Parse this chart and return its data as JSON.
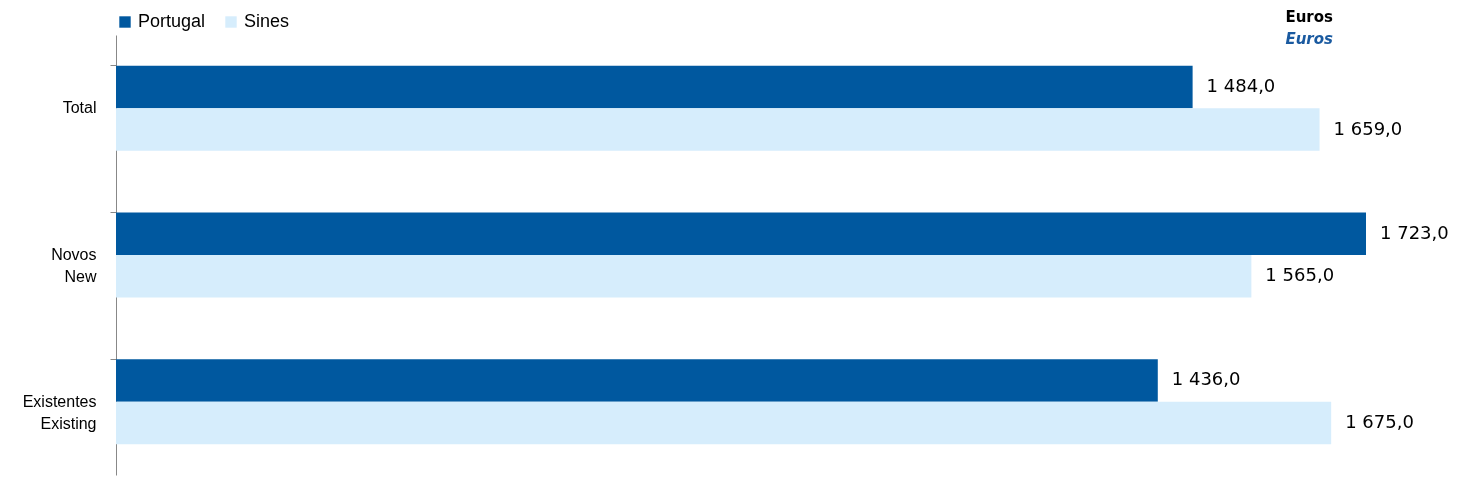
{
  "chart_data": {
    "type": "bar",
    "orientation": "horizontal",
    "categories": [
      "Total",
      "Novos\nNew",
      "Existentes\nExisting"
    ],
    "series": [
      {
        "name": "Portugal",
        "color": "#00589f",
        "values": [
          1484.0,
          1723.0,
          1436.0
        ],
        "value_labels": [
          "1 484,0",
          "1 723,0",
          "1 436,0"
        ]
      },
      {
        "name": "Sines",
        "color": "#d6edfc",
        "values": [
          1659.0,
          1565.0,
          1675.0
        ],
        "value_labels": [
          "1 659,0",
          "1 565,0",
          "1 675,0"
        ]
      }
    ],
    "tick_labels": "y",
    "legend": "top",
    "annotations": [
      "Euros",
      "Euros"
    ]
  }
}
